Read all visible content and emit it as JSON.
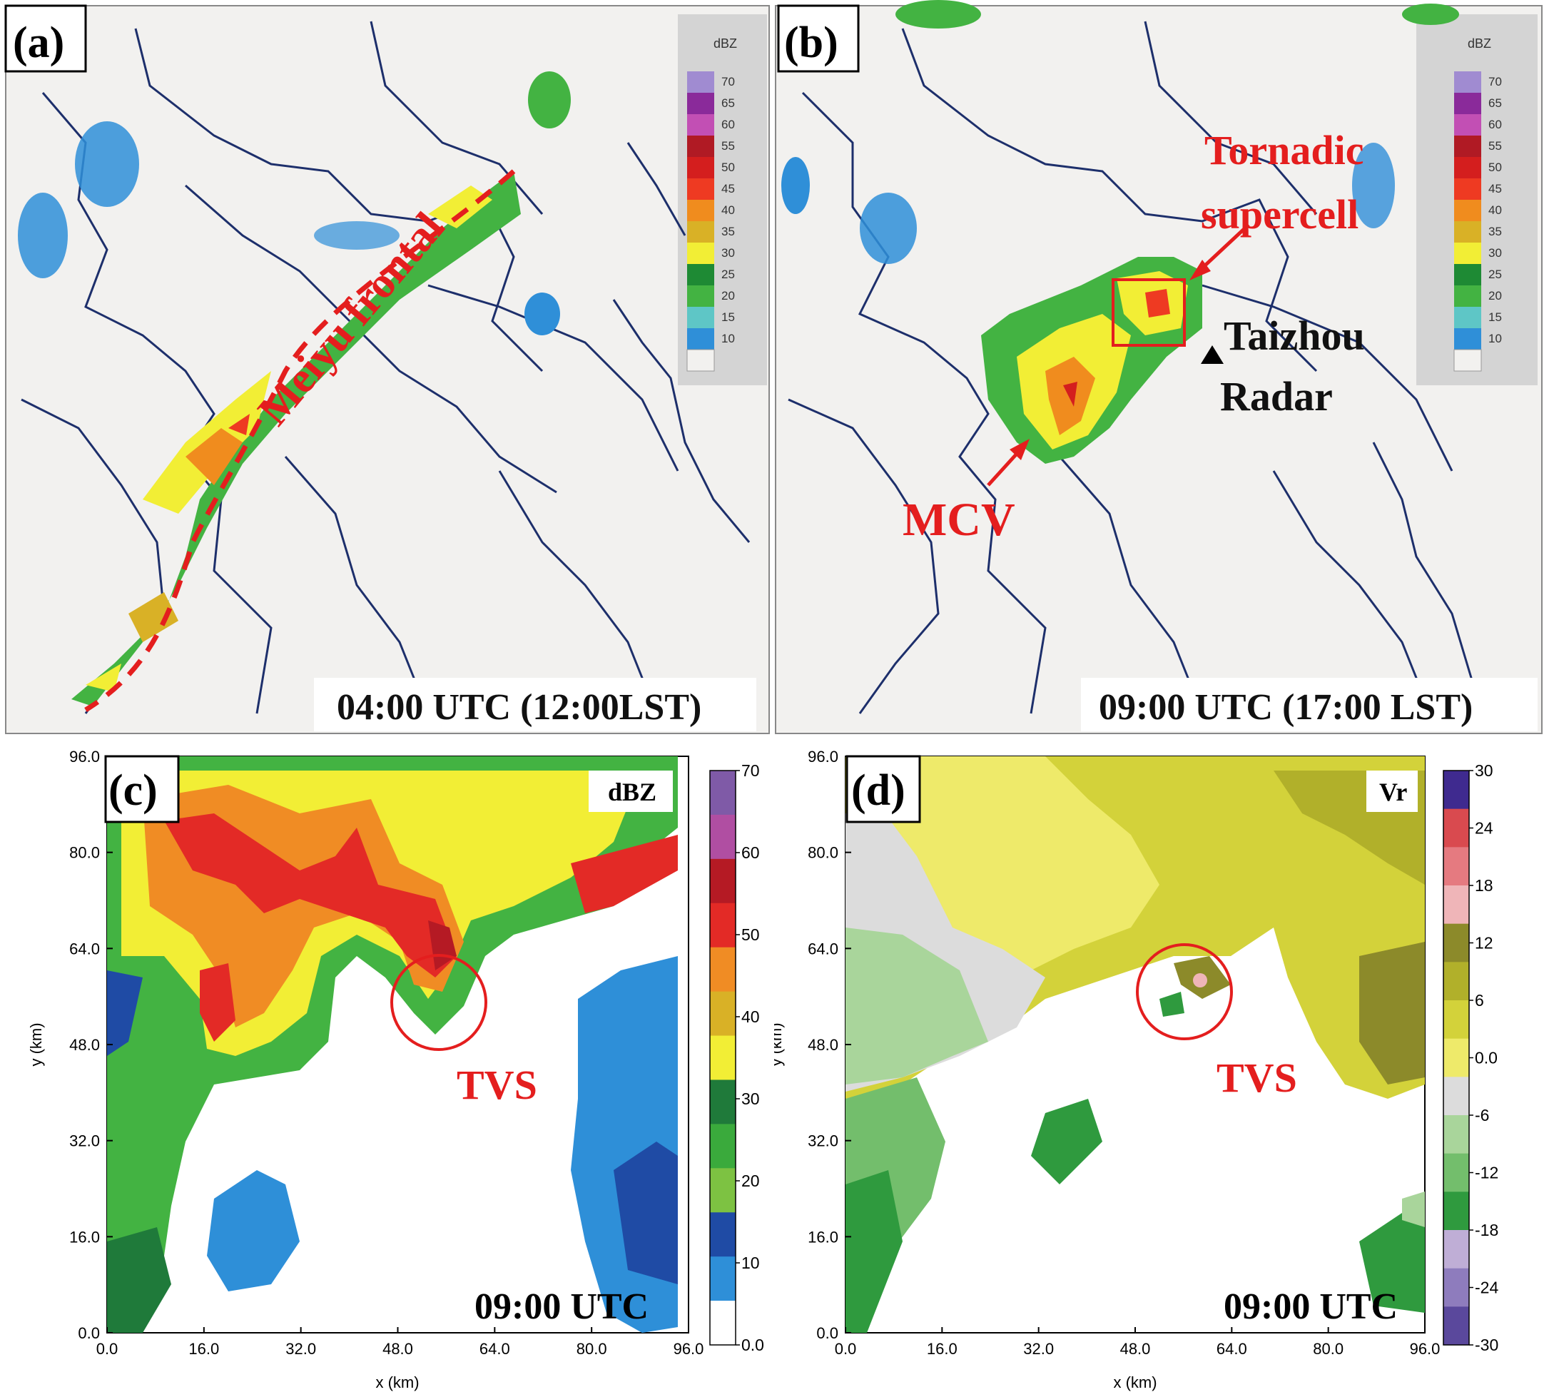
{
  "chart_data": [
    {
      "type": "heatmap",
      "panel_label": "(a)",
      "time_label": "04:00 UTC (12:00LST)",
      "legend_unit": "dBZ",
      "legend_levels": [
        "70",
        "65",
        "60",
        "55",
        "50",
        "45",
        "40",
        "35",
        "30",
        "25",
        "20",
        "15",
        "10"
      ],
      "legend_colors": [
        "#a08bd1",
        "#8a2a9a",
        "#c24fb4",
        "#b01a24",
        "#d41e1e",
        "#ee3a22",
        "#f08c1e",
        "#d9b126",
        "#f2ee35",
        "#1e8a34",
        "#43b342",
        "#5ec6c6",
        "#2f8fd8",
        ""
      ],
      "annotations": [
        "Meiyu frontal"
      ]
    },
    {
      "type": "heatmap",
      "panel_label": "(b)",
      "time_label": "09:00 UTC (17:00 LST)",
      "legend_unit": "dBZ",
      "legend_levels": [
        "70",
        "65",
        "60",
        "55",
        "50",
        "45",
        "40",
        "35",
        "30",
        "25",
        "20",
        "15",
        "10"
      ],
      "annotations": [
        "Tornadic",
        "supercell",
        "Taizhou",
        "Radar",
        "MCV"
      ]
    },
    {
      "type": "heatmap",
      "panel_label": "(c)",
      "time_label": "09:00 UTC",
      "field": "dBZ",
      "xlabel": "x (km)",
      "ylabel": "y (km)",
      "xlim": [
        0,
        96
      ],
      "ylim": [
        0,
        96
      ],
      "xticks": [
        "0.0",
        "16.0",
        "32.0",
        "48.0",
        "64.0",
        "80.0",
        "96.0"
      ],
      "yticks": [
        "0.0",
        "16.0",
        "32.0",
        "48.0",
        "64.0",
        "80.0",
        "96.0"
      ],
      "colorbar_ticks": [
        "70",
        "60",
        "50",
        "40",
        "30",
        "20",
        "10",
        "0.0"
      ],
      "colorbar_colors": [
        "#7f5aa7",
        "#b04ea2",
        "#b51a24",
        "#e32a26",
        "#f08c24",
        "#d9b126",
        "#f2ee35",
        "#1f7a3a",
        "#3aaa3c",
        "#7dc242",
        "#1f4ba5",
        "#2e8fd8",
        "#ffffff"
      ],
      "annotations": [
        "TVS"
      ]
    },
    {
      "type": "heatmap",
      "panel_label": "(d)",
      "time_label": "09:00 UTC",
      "field": "Vr",
      "xlabel": "x (km)",
      "ylabel": "y (km)",
      "xlim": [
        0,
        96
      ],
      "ylim": [
        0,
        96
      ],
      "xticks": [
        "0.0",
        "16.0",
        "32.0",
        "48.0",
        "64.0",
        "80.0",
        "96.0"
      ],
      "yticks": [
        "0.0",
        "16.0",
        "32.0",
        "48.0",
        "64.0",
        "80.0",
        "96.0"
      ],
      "colorbar_ticks": [
        "30",
        "24",
        "18",
        "12",
        "6",
        "0.0",
        "-6",
        "-12",
        "-18",
        "-24",
        "-30"
      ],
      "colorbar_colors": [
        "#3f2a8f",
        "#d94a4f",
        "#e57a80",
        "#efb5b8",
        "#8c8a2a",
        "#b1b02a",
        "#d3d23a",
        "#eeea6a",
        "#dcdcdc",
        "#a9d59b",
        "#73be6c",
        "#2f9a3e",
        "#bfaed6",
        "#8e7cbd",
        "#5a489c"
      ],
      "annotations": [
        "TVS"
      ]
    }
  ]
}
